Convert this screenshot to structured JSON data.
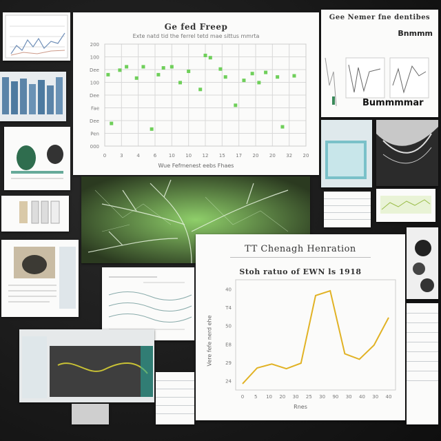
{
  "scatter_panel": {
    "title": "Ge fed Freep",
    "subtitle": "Exte natd tid the ferrel tetd mae sittus mmrta",
    "xlabel": "Wue Fefmenest eebs Fhaes",
    "y_ticks": [
      "200",
      "100",
      "Dee",
      "100",
      "Dee",
      "Fae",
      "Dee",
      "Pen",
      "000"
    ],
    "x_ticks": [
      "0",
      "3",
      "4",
      "6",
      "10",
      "10",
      "12",
      "15",
      "17",
      "20",
      "20",
      "32",
      "20"
    ]
  },
  "line_panel": {
    "header": "TT Chenagh Henration",
    "chart_title": "Stoh ratuo of EWN ls 1918",
    "ylabel": "Vere fefe nerd ehe",
    "xlabel": "Rnes",
    "y_ticks": [
      "40",
      "T4",
      "50",
      "E8",
      "29",
      "24"
    ],
    "x_ticks": [
      "0",
      "5",
      "10",
      "20",
      "30",
      "25",
      "30",
      "90",
      "30",
      "40",
      "30",
      "40"
    ],
    "line_color": "#e1b224"
  },
  "top_right_panel": {
    "title": "Gee Nemer fne dentibes",
    "label_a": "Bnmmm",
    "label_b": "Bummmmar"
  },
  "chart_data": [
    {
      "type": "scatter",
      "title": "Ge fed Freep",
      "ylim": [
        0,
        9
      ],
      "xlim": [
        0,
        12
      ],
      "points": [
        {
          "x": 0.2,
          "y": 6.3
        },
        {
          "x": 0.4,
          "y": 2.0
        },
        {
          "x": 0.9,
          "y": 6.7
        },
        {
          "x": 1.3,
          "y": 7.0
        },
        {
          "x": 1.9,
          "y": 6.0
        },
        {
          "x": 2.3,
          "y": 7.0
        },
        {
          "x": 2.8,
          "y": 1.5
        },
        {
          "x": 3.2,
          "y": 6.3
        },
        {
          "x": 3.5,
          "y": 6.9
        },
        {
          "x": 4.0,
          "y": 7.0
        },
        {
          "x": 4.5,
          "y": 5.6
        },
        {
          "x": 5.0,
          "y": 6.6
        },
        {
          "x": 5.7,
          "y": 5.0
        },
        {
          "x": 6.0,
          "y": 8.0
        },
        {
          "x": 6.3,
          "y": 7.8
        },
        {
          "x": 6.9,
          "y": 6.8
        },
        {
          "x": 7.2,
          "y": 6.1
        },
        {
          "x": 7.8,
          "y": 3.6
        },
        {
          "x": 8.3,
          "y": 5.8
        },
        {
          "x": 8.8,
          "y": 6.4
        },
        {
          "x": 9.2,
          "y": 5.6
        },
        {
          "x": 9.6,
          "y": 6.5
        },
        {
          "x": 10.3,
          "y": 6.1
        },
        {
          "x": 10.6,
          "y": 1.7
        },
        {
          "x": 11.3,
          "y": 6.2
        }
      ]
    },
    {
      "type": "line",
      "title": "Stoh ratuo of EWN ls 1918",
      "x": [
        0,
        1,
        2,
        3,
        4,
        5,
        6,
        7,
        8,
        9,
        10
      ],
      "values": [
        0.8,
        2.8,
        3.3,
        2.7,
        3.4,
        12.0,
        12.6,
        4.6,
        3.9,
        5.7,
        9.2
      ],
      "ylim": [
        0,
        14
      ]
    }
  ]
}
